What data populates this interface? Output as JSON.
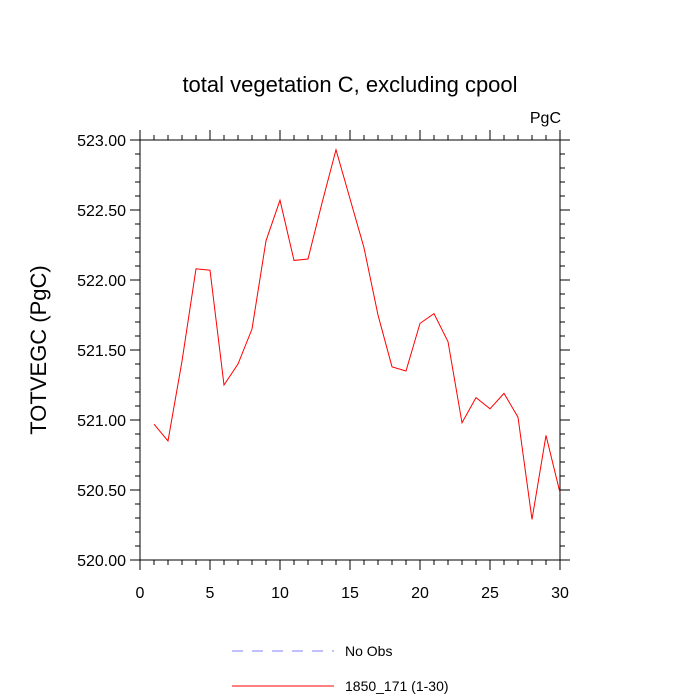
{
  "chart_data": {
    "type": "line",
    "title": "total vegetation C, excluding cpool",
    "units_label": "PgC",
    "xlabel": "",
    "ylabel": "TOTVEGC  (PgC)",
    "xlim": [
      0,
      30
    ],
    "ylim": [
      520.0,
      523.0
    ],
    "xticks": [
      0,
      5,
      10,
      15,
      20,
      25,
      30
    ],
    "xtick_labels": [
      "0",
      "5",
      "10",
      "15",
      "20",
      "25",
      "30"
    ],
    "yticks": [
      520.0,
      520.5,
      521.0,
      521.5,
      522.0,
      522.5,
      523.0
    ],
    "ytick_labels": [
      "520.00",
      "520.50",
      "521.00",
      "521.50",
      "522.00",
      "522.50",
      "523.00"
    ],
    "grid": false,
    "legend_placement": "bottom-center",
    "series": [
      {
        "name": "No Obs",
        "color": "#8080ff",
        "style": "dashed",
        "x": [],
        "values": []
      },
      {
        "name": "1850_171 (1-30)",
        "color": "#ff0000",
        "style": "solid",
        "x": [
          1,
          2,
          3,
          4,
          5,
          6,
          7,
          8,
          9,
          10,
          11,
          12,
          13,
          14,
          15,
          16,
          17,
          18,
          19,
          20,
          21,
          22,
          23,
          24,
          25,
          26,
          27,
          28,
          29,
          30
        ],
        "values": [
          520.97,
          520.85,
          521.42,
          522.08,
          522.07,
          521.25,
          521.4,
          521.65,
          522.28,
          522.57,
          522.14,
          522.15,
          522.55,
          522.93,
          522.58,
          522.23,
          521.75,
          521.38,
          521.35,
          521.69,
          521.76,
          521.56,
          520.98,
          521.16,
          521.08,
          521.19,
          521.02,
          520.29,
          520.89,
          520.48
        ]
      }
    ]
  }
}
